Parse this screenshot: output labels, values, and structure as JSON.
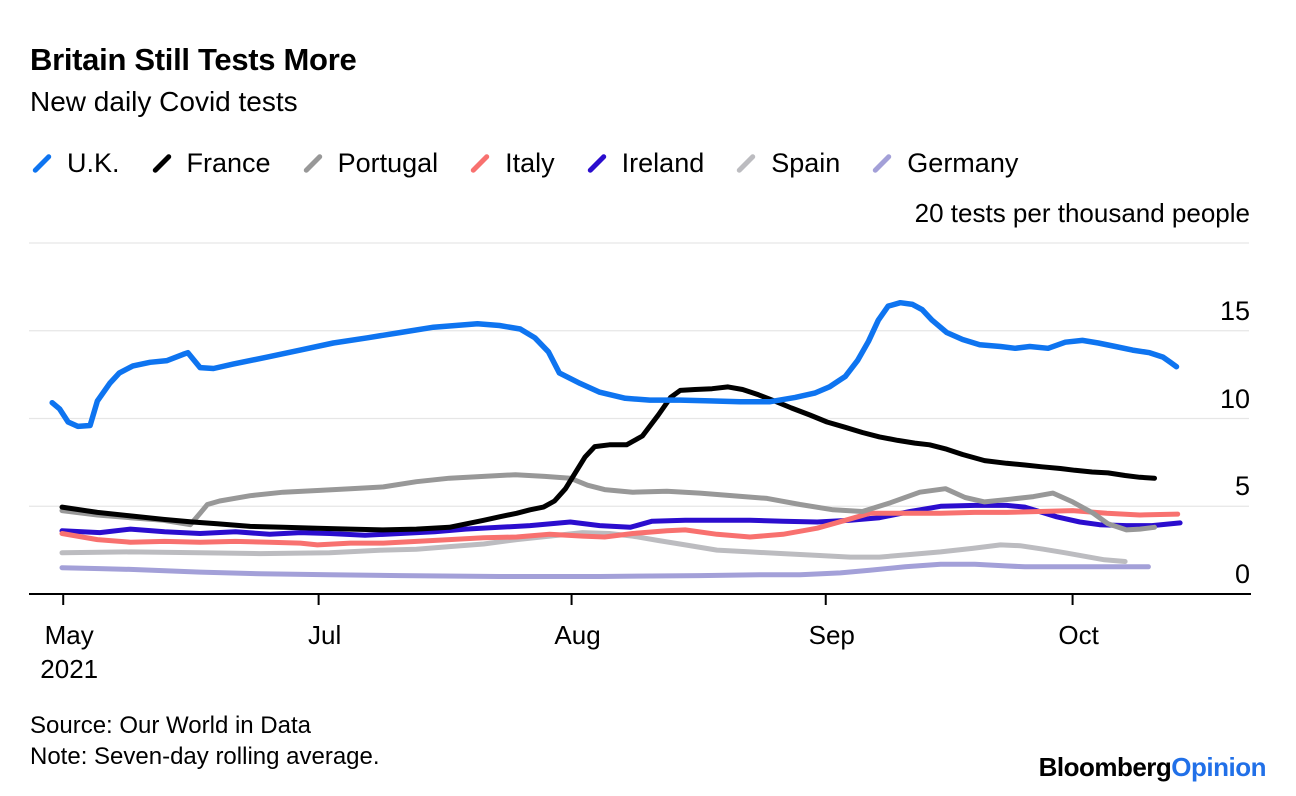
{
  "header": {
    "title": "Britain Still Tests More",
    "subtitle": "New daily Covid tests"
  },
  "axis_note": "20 tests per thousand people",
  "footer": {
    "source": "Source: Our World in Data",
    "note": "Note: Seven-day rolling average.",
    "brand": "Bloomberg",
    "brand_suffix": "Opinion"
  },
  "colors": {
    "grid": "#e6e6e6",
    "axis": "#000000",
    "brand_blue": "#2170e8"
  },
  "chart_data": {
    "type": "line",
    "title": "Britain Still Tests More",
    "subtitle": "New daily Covid tests",
    "unit_note": "20 tests per thousand people",
    "ylabel": "tests per thousand people",
    "ylim": [
      0,
      20
    ],
    "y_gridlines": [
      5,
      10,
      15,
      20
    ],
    "y_tick_labels": [
      15,
      10,
      5,
      0
    ],
    "grid": true,
    "legend_position": "top",
    "x_unit": "fraction of x-axis, May 2021 - mid Oct 2021",
    "x_ticks": [
      {
        "label": "May",
        "sublabel": "2021",
        "pos": 0.028
      },
      {
        "label": "Jul",
        "pos": 0.237
      },
      {
        "label": "Aug",
        "pos": 0.444
      },
      {
        "label": "Sep",
        "pos": 0.652
      },
      {
        "label": "Oct",
        "pos": 0.854
      }
    ],
    "series": [
      {
        "name": "U.K.",
        "color": "#0e74f0",
        "width": 5.5,
        "points": [
          [
            0.019,
            10.9
          ],
          [
            0.025,
            10.55
          ],
          [
            0.032,
            9.8
          ],
          [
            0.04,
            9.55
          ],
          [
            0.05,
            9.6
          ],
          [
            0.056,
            11.0
          ],
          [
            0.066,
            12.0
          ],
          [
            0.074,
            12.6
          ],
          [
            0.085,
            13.0
          ],
          [
            0.099,
            13.2
          ],
          [
            0.113,
            13.3
          ],
          [
            0.126,
            13.65
          ],
          [
            0.13,
            13.75
          ],
          [
            0.14,
            12.9
          ],
          [
            0.151,
            12.85
          ],
          [
            0.167,
            13.1
          ],
          [
            0.195,
            13.5
          ],
          [
            0.222,
            13.9
          ],
          [
            0.249,
            14.3
          ],
          [
            0.277,
            14.6
          ],
          [
            0.304,
            14.9
          ],
          [
            0.331,
            15.2
          ],
          [
            0.358,
            15.35
          ],
          [
            0.367,
            15.4
          ],
          [
            0.385,
            15.3
          ],
          [
            0.402,
            15.1
          ],
          [
            0.414,
            14.6
          ],
          [
            0.425,
            13.8
          ],
          [
            0.434,
            12.6
          ],
          [
            0.451,
            12.0
          ],
          [
            0.467,
            11.5
          ],
          [
            0.488,
            11.15
          ],
          [
            0.508,
            11.05
          ],
          [
            0.533,
            11.05
          ],
          [
            0.557,
            11.0
          ],
          [
            0.582,
            10.95
          ],
          [
            0.606,
            10.95
          ],
          [
            0.627,
            11.2
          ],
          [
            0.643,
            11.45
          ],
          [
            0.655,
            11.8
          ],
          [
            0.668,
            12.4
          ],
          [
            0.678,
            13.3
          ],
          [
            0.687,
            14.4
          ],
          [
            0.695,
            15.6
          ],
          [
            0.703,
            16.4
          ],
          [
            0.713,
            16.6
          ],
          [
            0.723,
            16.5
          ],
          [
            0.731,
            16.2
          ],
          [
            0.739,
            15.6
          ],
          [
            0.751,
            14.9
          ],
          [
            0.764,
            14.5
          ],
          [
            0.778,
            14.2
          ],
          [
            0.795,
            14.1
          ],
          [
            0.807,
            14.0
          ],
          [
            0.819,
            14.1
          ],
          [
            0.834,
            14.0
          ],
          [
            0.848,
            14.35
          ],
          [
            0.862,
            14.45
          ],
          [
            0.875,
            14.3
          ],
          [
            0.889,
            14.1
          ],
          [
            0.903,
            13.9
          ],
          [
            0.917,
            13.75
          ],
          [
            0.928,
            13.5
          ],
          [
            0.934,
            13.2
          ],
          [
            0.939,
            12.95
          ]
        ]
      },
      {
        "name": "France",
        "color": "#000000",
        "width": 5,
        "points": [
          [
            0.027,
            4.95
          ],
          [
            0.056,
            4.65
          ],
          [
            0.083,
            4.45
          ],
          [
            0.11,
            4.25
          ],
          [
            0.134,
            4.1
          ],
          [
            0.154,
            4.0
          ],
          [
            0.181,
            3.85
          ],
          [
            0.208,
            3.8
          ],
          [
            0.236,
            3.75
          ],
          [
            0.263,
            3.7
          ],
          [
            0.29,
            3.65
          ],
          [
            0.317,
            3.7
          ],
          [
            0.344,
            3.8
          ],
          [
            0.358,
            4.0
          ],
          [
            0.372,
            4.2
          ],
          [
            0.385,
            4.4
          ],
          [
            0.399,
            4.6
          ],
          [
            0.41,
            4.8
          ],
          [
            0.421,
            4.95
          ],
          [
            0.43,
            5.3
          ],
          [
            0.439,
            6.0
          ],
          [
            0.447,
            6.9
          ],
          [
            0.455,
            7.8
          ],
          [
            0.463,
            8.4
          ],
          [
            0.475,
            8.5
          ],
          [
            0.489,
            8.5
          ],
          [
            0.502,
            9.0
          ],
          [
            0.515,
            10.2
          ],
          [
            0.525,
            11.2
          ],
          [
            0.533,
            11.6
          ],
          [
            0.545,
            11.65
          ],
          [
            0.559,
            11.7
          ],
          [
            0.572,
            11.8
          ],
          [
            0.584,
            11.65
          ],
          [
            0.597,
            11.35
          ],
          [
            0.61,
            11.0
          ],
          [
            0.624,
            10.6
          ],
          [
            0.639,
            10.2
          ],
          [
            0.653,
            9.8
          ],
          [
            0.668,
            9.5
          ],
          [
            0.682,
            9.2
          ],
          [
            0.696,
            8.95
          ],
          [
            0.711,
            8.75
          ],
          [
            0.725,
            8.6
          ],
          [
            0.737,
            8.5
          ],
          [
            0.751,
            8.25
          ],
          [
            0.764,
            7.95
          ],
          [
            0.782,
            7.6
          ],
          [
            0.8,
            7.45
          ],
          [
            0.815,
            7.35
          ],
          [
            0.829,
            7.25
          ],
          [
            0.844,
            7.15
          ],
          [
            0.856,
            7.05
          ],
          [
            0.87,
            6.95
          ],
          [
            0.883,
            6.9
          ],
          [
            0.897,
            6.75
          ],
          [
            0.909,
            6.65
          ],
          [
            0.921,
            6.6
          ]
        ]
      },
      {
        "name": "Portugal",
        "color": "#989898",
        "width": 5,
        "points": [
          [
            0.027,
            4.75
          ],
          [
            0.056,
            4.5
          ],
          [
            0.083,
            4.35
          ],
          [
            0.11,
            4.2
          ],
          [
            0.132,
            3.95
          ],
          [
            0.14,
            4.6
          ],
          [
            0.146,
            5.1
          ],
          [
            0.156,
            5.3
          ],
          [
            0.181,
            5.6
          ],
          [
            0.208,
            5.8
          ],
          [
            0.236,
            5.9
          ],
          [
            0.263,
            6.0
          ],
          [
            0.29,
            6.1
          ],
          [
            0.317,
            6.4
          ],
          [
            0.344,
            6.6
          ],
          [
            0.372,
            6.7
          ],
          [
            0.398,
            6.8
          ],
          [
            0.422,
            6.7
          ],
          [
            0.443,
            6.6
          ],
          [
            0.457,
            6.2
          ],
          [
            0.471,
            5.95
          ],
          [
            0.494,
            5.8
          ],
          [
            0.522,
            5.85
          ],
          [
            0.549,
            5.75
          ],
          [
            0.576,
            5.6
          ],
          [
            0.604,
            5.45
          ],
          [
            0.631,
            5.1
          ],
          [
            0.658,
            4.8
          ],
          [
            0.682,
            4.7
          ],
          [
            0.705,
            5.2
          ],
          [
            0.729,
            5.8
          ],
          [
            0.75,
            6.0
          ],
          [
            0.766,
            5.5
          ],
          [
            0.782,
            5.25
          ],
          [
            0.803,
            5.4
          ],
          [
            0.822,
            5.55
          ],
          [
            0.838,
            5.75
          ],
          [
            0.854,
            5.25
          ],
          [
            0.871,
            4.6
          ],
          [
            0.883,
            4.0
          ],
          [
            0.898,
            3.65
          ],
          [
            0.909,
            3.7
          ],
          [
            0.921,
            3.8
          ]
        ]
      },
      {
        "name": "Italy",
        "color": "#f8716f",
        "width": 5,
        "points": [
          [
            0.027,
            3.45
          ],
          [
            0.056,
            3.1
          ],
          [
            0.083,
            2.95
          ],
          [
            0.111,
            3.0
          ],
          [
            0.14,
            2.95
          ],
          [
            0.169,
            3.0
          ],
          [
            0.197,
            2.95
          ],
          [
            0.222,
            2.9
          ],
          [
            0.236,
            2.8
          ],
          [
            0.263,
            2.9
          ],
          [
            0.29,
            2.9
          ],
          [
            0.317,
            3.0
          ],
          [
            0.344,
            3.1
          ],
          [
            0.372,
            3.2
          ],
          [
            0.399,
            3.25
          ],
          [
            0.426,
            3.4
          ],
          [
            0.453,
            3.3
          ],
          [
            0.471,
            3.25
          ],
          [
            0.494,
            3.45
          ],
          [
            0.522,
            3.6
          ],
          [
            0.537,
            3.65
          ],
          [
            0.563,
            3.4
          ],
          [
            0.59,
            3.25
          ],
          [
            0.617,
            3.4
          ],
          [
            0.645,
            3.75
          ],
          [
            0.668,
            4.2
          ],
          [
            0.688,
            4.6
          ],
          [
            0.721,
            4.6
          ],
          [
            0.746,
            4.6
          ],
          [
            0.774,
            4.65
          ],
          [
            0.8,
            4.65
          ],
          [
            0.827,
            4.7
          ],
          [
            0.854,
            4.75
          ],
          [
            0.882,
            4.6
          ],
          [
            0.909,
            4.5
          ],
          [
            0.94,
            4.55
          ]
        ]
      },
      {
        "name": "Ireland",
        "color": "#2b0dce",
        "width": 5,
        "points": [
          [
            0.027,
            3.6
          ],
          [
            0.058,
            3.5
          ],
          [
            0.083,
            3.7
          ],
          [
            0.111,
            3.55
          ],
          [
            0.14,
            3.45
          ],
          [
            0.169,
            3.55
          ],
          [
            0.197,
            3.4
          ],
          [
            0.222,
            3.5
          ],
          [
            0.246,
            3.45
          ],
          [
            0.275,
            3.35
          ],
          [
            0.304,
            3.45
          ],
          [
            0.332,
            3.55
          ],
          [
            0.357,
            3.7
          ],
          [
            0.385,
            3.8
          ],
          [
            0.41,
            3.9
          ],
          [
            0.443,
            4.1
          ],
          [
            0.467,
            3.9
          ],
          [
            0.492,
            3.8
          ],
          [
            0.51,
            4.15
          ],
          [
            0.537,
            4.2
          ],
          [
            0.563,
            4.2
          ],
          [
            0.59,
            4.2
          ],
          [
            0.617,
            4.15
          ],
          [
            0.645,
            4.1
          ],
          [
            0.672,
            4.2
          ],
          [
            0.696,
            4.35
          ],
          [
            0.721,
            4.7
          ],
          [
            0.746,
            5.0
          ],
          [
            0.774,
            5.05
          ],
          [
            0.8,
            5.05
          ],
          [
            0.815,
            4.95
          ],
          [
            0.841,
            4.4
          ],
          [
            0.86,
            4.1
          ],
          [
            0.876,
            3.95
          ],
          [
            0.898,
            3.9
          ],
          [
            0.919,
            3.9
          ],
          [
            0.942,
            4.05
          ]
        ]
      },
      {
        "name": "Spain",
        "color": "#bcbcc0",
        "width": 5,
        "points": [
          [
            0.027,
            2.35
          ],
          [
            0.083,
            2.4
          ],
          [
            0.14,
            2.35
          ],
          [
            0.189,
            2.3
          ],
          [
            0.246,
            2.35
          ],
          [
            0.29,
            2.5
          ],
          [
            0.317,
            2.55
          ],
          [
            0.344,
            2.7
          ],
          [
            0.372,
            2.85
          ],
          [
            0.399,
            3.1
          ],
          [
            0.426,
            3.3
          ],
          [
            0.453,
            3.5
          ],
          [
            0.475,
            3.45
          ],
          [
            0.494,
            3.3
          ],
          [
            0.515,
            3.05
          ],
          [
            0.537,
            2.8
          ],
          [
            0.563,
            2.5
          ],
          [
            0.59,
            2.4
          ],
          [
            0.617,
            2.3
          ],
          [
            0.645,
            2.2
          ],
          [
            0.672,
            2.1
          ],
          [
            0.696,
            2.1
          ],
          [
            0.721,
            2.25
          ],
          [
            0.746,
            2.4
          ],
          [
            0.772,
            2.6
          ],
          [
            0.795,
            2.8
          ],
          [
            0.811,
            2.75
          ],
          [
            0.83,
            2.55
          ],
          [
            0.848,
            2.35
          ],
          [
            0.864,
            2.15
          ],
          [
            0.88,
            1.95
          ],
          [
            0.897,
            1.85
          ]
        ]
      },
      {
        "name": "Germany",
        "color": "#a3a0d8",
        "width": 5,
        "points": [
          [
            0.027,
            1.5
          ],
          [
            0.058,
            1.45
          ],
          [
            0.083,
            1.4
          ],
          [
            0.14,
            1.25
          ],
          [
            0.189,
            1.15
          ],
          [
            0.246,
            1.1
          ],
          [
            0.304,
            1.05
          ],
          [
            0.385,
            1.0
          ],
          [
            0.467,
            1.0
          ],
          [
            0.549,
            1.05
          ],
          [
            0.598,
            1.1
          ],
          [
            0.631,
            1.1
          ],
          [
            0.664,
            1.2
          ],
          [
            0.688,
            1.35
          ],
          [
            0.717,
            1.55
          ],
          [
            0.746,
            1.7
          ],
          [
            0.774,
            1.7
          ],
          [
            0.799,
            1.6
          ],
          [
            0.815,
            1.55
          ],
          [
            0.844,
            1.55
          ],
          [
            0.876,
            1.55
          ],
          [
            0.916,
            1.55
          ]
        ]
      }
    ]
  }
}
